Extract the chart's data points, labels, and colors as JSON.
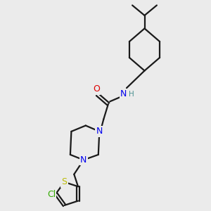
{
  "bg_color": "#ebebeb",
  "bond_color": "#1a1a1a",
  "N_color": "#0000ee",
  "O_color": "#dd0000",
  "S_color": "#bbbb00",
  "Cl_color": "#33aa00",
  "H_color": "#4a9090",
  "line_width": 1.6,
  "fig_w": 3.0,
  "fig_h": 3.0,
  "dpi": 100,
  "xlim": [
    0,
    10
  ],
  "ylim": [
    0,
    10
  ]
}
